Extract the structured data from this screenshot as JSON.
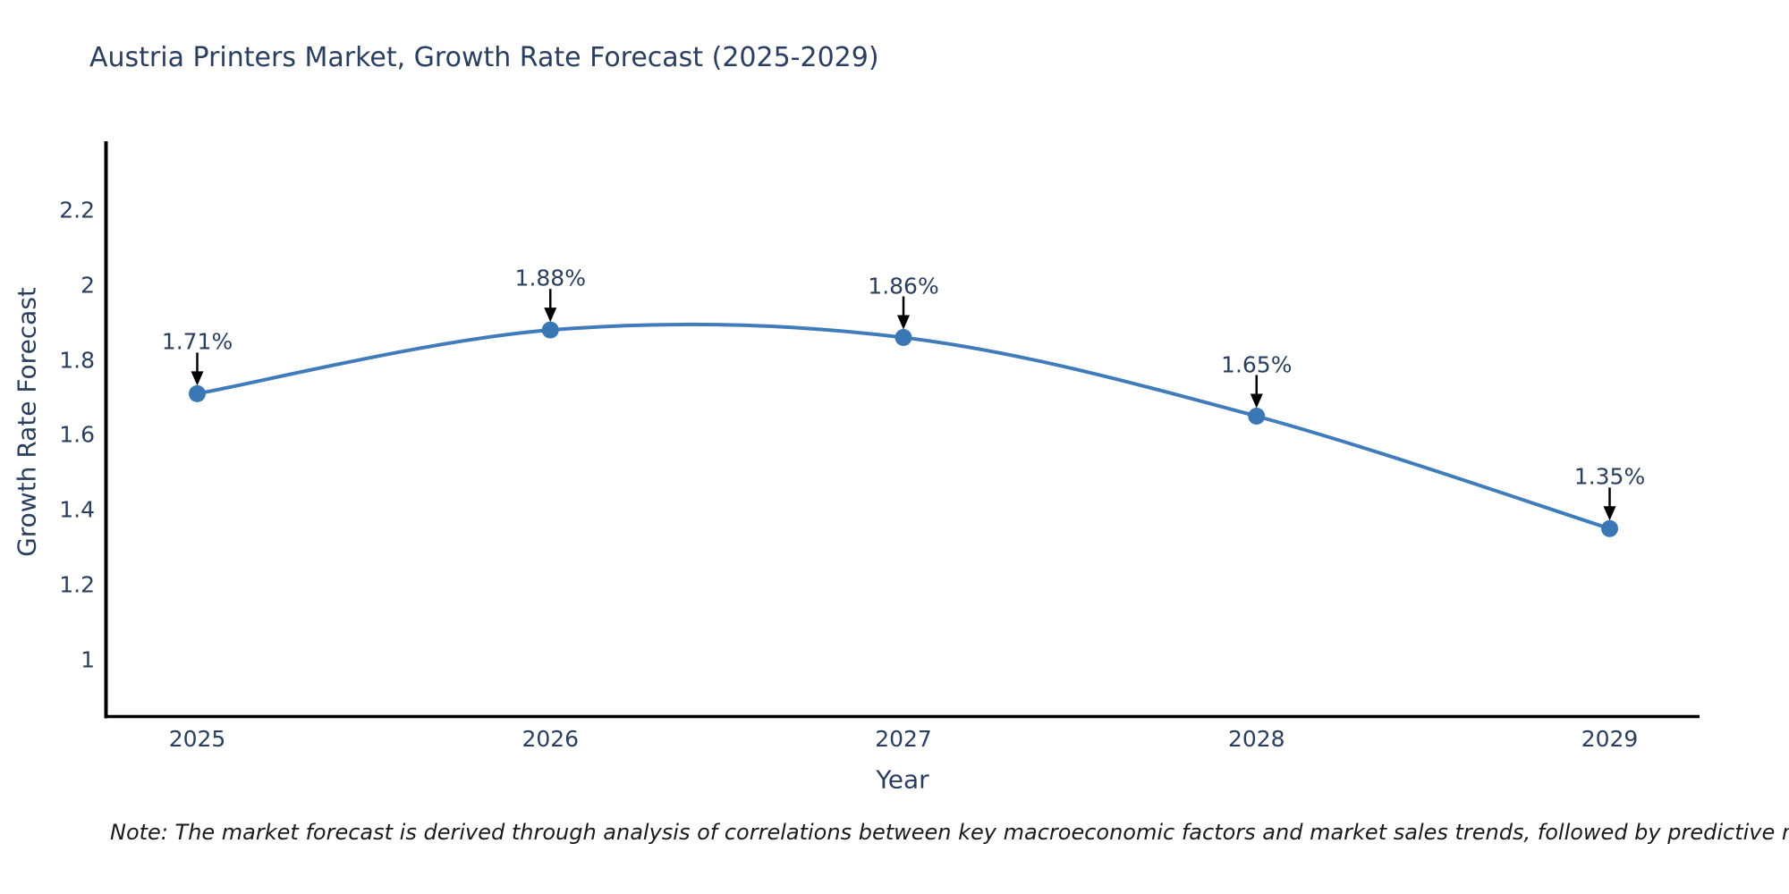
{
  "title": "Austria Printers Market, Growth Rate Forecast (2025-2029)",
  "note": "Note: The market forecast is derived through analysis of correlations between key macroeconomic factors and market sales trends, followed by predictive modeling to project future sales",
  "chart_data": {
    "type": "line",
    "title": "Austria Printers Market, Growth Rate Forecast (2025-2029)",
    "xlabel": "Year",
    "ylabel": "Growth Rate Forecast",
    "categories": [
      "2025",
      "2026",
      "2027",
      "2028",
      "2029"
    ],
    "series": [
      {
        "name": "Growth Rate Forecast",
        "values": [
          1.71,
          1.88,
          1.86,
          1.65,
          1.35
        ]
      }
    ],
    "point_labels": [
      "1.71%",
      "1.88%",
      "1.86%",
      "1.65%",
      "1.35%"
    ],
    "ytick_labels": [
      "2.2",
      "2",
      "1.8",
      "1.6",
      "1.4",
      "1.2",
      "1"
    ],
    "ytick_values": [
      2.2,
      2.0,
      1.8,
      1.6,
      1.4,
      1.2,
      1.0
    ],
    "ylim": [
      0.85,
      2.38
    ],
    "grid": false,
    "legend_visible": false,
    "line_shape": "spline",
    "colors": {
      "line": "#3f7cb9",
      "marker": "#3a78b5",
      "axis_line": "#000000",
      "annotation_arrow": "#000000",
      "text": "#2a3f5f",
      "note_text": "#1a1a1a",
      "background": "#ffffff"
    }
  }
}
